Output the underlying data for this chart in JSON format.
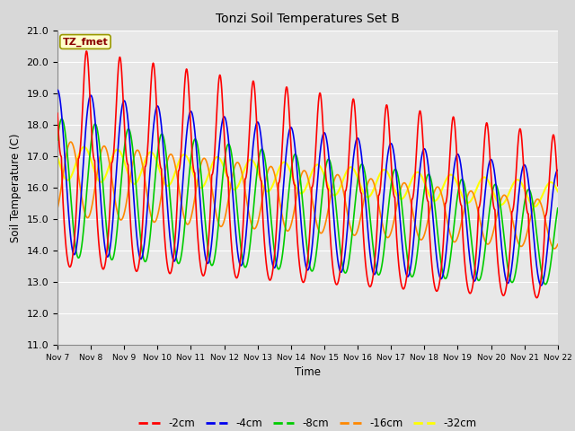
{
  "title": "Tonzi Soil Temperatures Set B",
  "xlabel": "Time",
  "ylabel": "Soil Temperature (C)",
  "ylim": [
    11.0,
    21.0
  ],
  "yticks": [
    11.0,
    12.0,
    13.0,
    14.0,
    15.0,
    16.0,
    17.0,
    18.0,
    19.0,
    20.0,
    21.0
  ],
  "xtick_labels": [
    "Nov 7",
    "Nov 8",
    "Nov 9",
    "Nov 10",
    "Nov 11",
    "Nov 12",
    "Nov 13",
    "Nov 14",
    "Nov 15",
    "Nov 16",
    "Nov 17",
    "Nov 18",
    "Nov 19",
    "Nov 20",
    "Nov 21",
    "Nov 22"
  ],
  "colors": {
    "-2cm": "#FF0000",
    "-4cm": "#0000EE",
    "-8cm": "#00CC00",
    "-16cm": "#FF8800",
    "-32cm": "#FFFF00"
  },
  "legend_label": "TZ_fmet",
  "fig_bg": "#D8D8D8",
  "plot_bg": "#E8E8E8",
  "n_days": 15,
  "spd": 120
}
